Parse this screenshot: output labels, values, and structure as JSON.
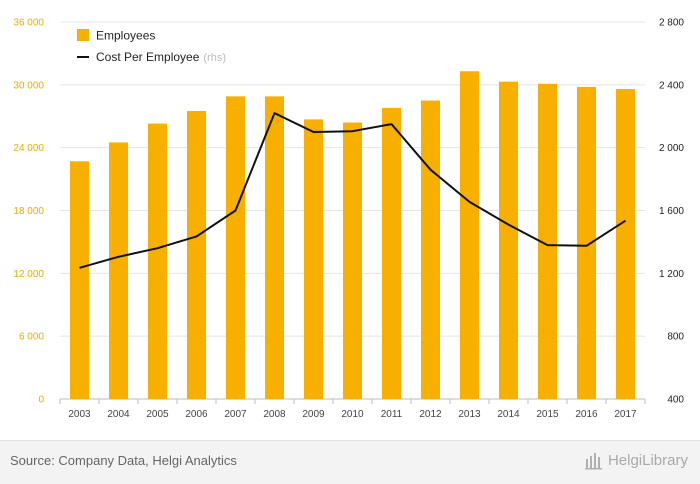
{
  "chart_data": {
    "type": "bar",
    "categories": [
      "2003",
      "2004",
      "2005",
      "2006",
      "2007",
      "2008",
      "2009",
      "2010",
      "2011",
      "2012",
      "2013",
      "2014",
      "2015",
      "2016",
      "2017"
    ],
    "series": [
      {
        "name": "Employees",
        "type": "bar",
        "axis": "left",
        "color": "#f7b000",
        "values": [
          22700,
          24500,
          26300,
          27500,
          28900,
          28900,
          26700,
          26400,
          27800,
          28500,
          31300,
          30300,
          30100,
          29800,
          29600
        ]
      },
      {
        "name": "Cost Per Employee",
        "type": "line",
        "axis": "right",
        "color": "#111111",
        "values": [
          1235,
          1305,
          1360,
          1435,
          1600,
          2220,
          2100,
          2105,
          2150,
          1860,
          1655,
          1510,
          1380,
          1375,
          1535
        ]
      }
    ],
    "y_left": {
      "range": [
        0,
        36000
      ],
      "ticks": [
        "0",
        "6 000",
        "12 000",
        "18 000",
        "24 000",
        "30 000",
        "36 000"
      ],
      "color": "#f2a900"
    },
    "y_right": {
      "range": [
        400,
        2800
      ],
      "ticks": [
        "400",
        "800",
        "1 200",
        "1 600",
        "2 000",
        "2 400",
        "2 800"
      ],
      "color": "#222222"
    },
    "legend": {
      "position": "top-left",
      "items": [
        "Employees",
        "Cost Per Employee"
      ],
      "note": "(rhs)"
    },
    "grid": true
  },
  "footer": {
    "source": "Source: Company Data, Helgi Analytics",
    "brand": "HelgiLibrary"
  }
}
